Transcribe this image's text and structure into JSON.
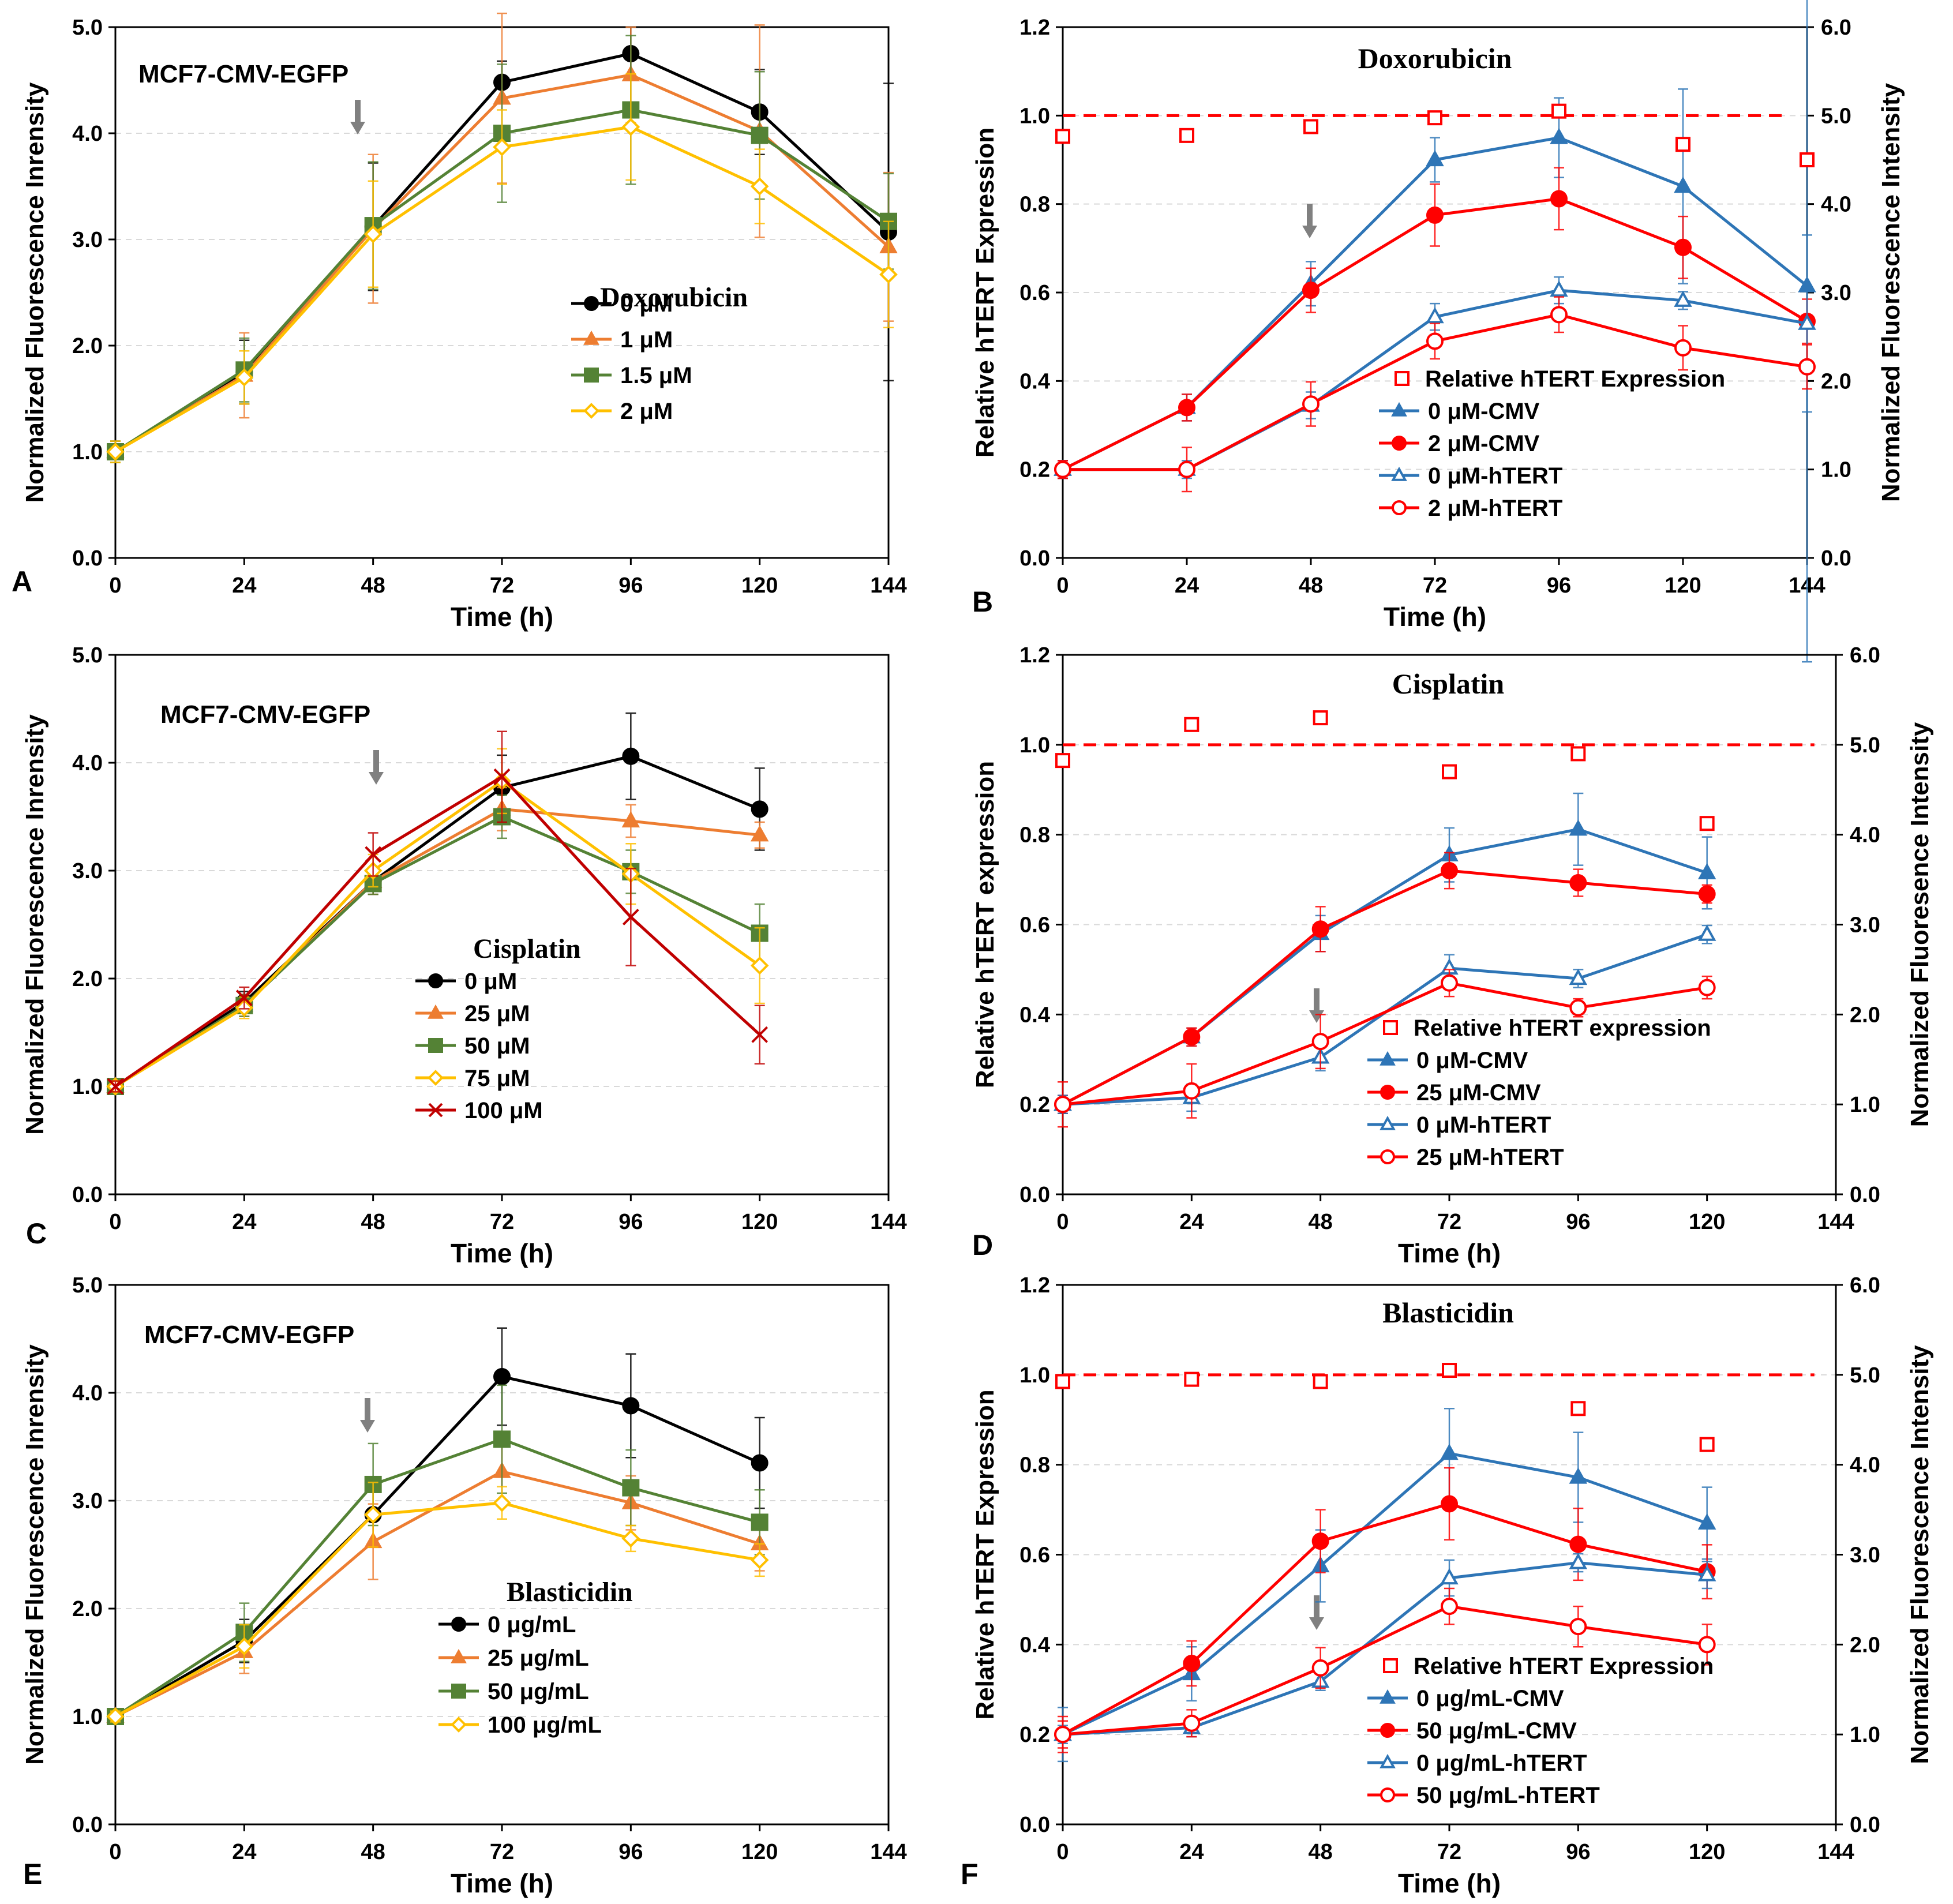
{
  "chart_data": [
    {
      "panel": "A",
      "type": "line",
      "annotation": "MCF7-CMV-EGFP",
      "xlabel": "Time (h)",
      "ylabel": "Normalized Fluorescence Inrensity",
      "xlim": [
        0,
        144
      ],
      "ylim": [
        0,
        5
      ],
      "xticks": [
        "0",
        "24",
        "48",
        "72",
        "96",
        "120",
        "144"
      ],
      "yticks": [
        "0.0",
        "1.0",
        "2.0",
        "3.0",
        "4.0",
        "5.0"
      ],
      "arrow_at": 48,
      "legend_title": "Doxorubicin",
      "x": [
        0,
        24,
        48,
        72,
        96,
        120,
        144
      ],
      "series": [
        {
          "name": "0 μM",
          "color": "#000000",
          "marker": "circle",
          "values": [
            1.0,
            1.75,
            3.12,
            4.48,
            4.75,
            4.2,
            3.07
          ],
          "errors": [
            0.1,
            0.3,
            0.6,
            0.2,
            0.25,
            0.4,
            1.4
          ]
        },
        {
          "name": "1 μM",
          "color": "#ED7D31",
          "marker": "triangle",
          "values": [
            1.0,
            1.72,
            3.1,
            4.33,
            4.55,
            4.02,
            2.93
          ],
          "errors": [
            0.1,
            0.4,
            0.7,
            0.8,
            0.45,
            1.0,
            0.7
          ]
        },
        {
          "name": "1.5 μM",
          "color": "#548235",
          "marker": "square",
          "values": [
            1.0,
            1.77,
            3.13,
            4.0,
            4.22,
            3.98,
            3.17
          ],
          "errors": [
            0.1,
            0.3,
            0.6,
            0.65,
            0.7,
            0.6,
            0.45
          ]
        },
        {
          "name": "2 μM",
          "color": "#FFC000",
          "marker": "diamond-open",
          "values": [
            1.0,
            1.7,
            3.05,
            3.87,
            4.06,
            3.5,
            2.67
          ],
          "errors": [
            0.1,
            0.25,
            0.5,
            0.35,
            0.5,
            0.35,
            0.5
          ]
        }
      ]
    },
    {
      "panel": "B",
      "type": "line",
      "title": "Doxorubicin",
      "xlabel": "Time (h)",
      "ylabel": "Relative hTERT Expression",
      "y2label": "Normalized Fluorescence Intensity",
      "xlim": [
        0,
        144
      ],
      "ylim": [
        0,
        1.2
      ],
      "y2lim": [
        0,
        6
      ],
      "xticks": [
        "0",
        "24",
        "48",
        "72",
        "96",
        "120",
        "144"
      ],
      "yticks": [
        "0.0",
        "0.2",
        "0.4",
        "0.6",
        "0.8",
        "1.0",
        "1.2"
      ],
      "y2ticks": [
        "0.0",
        "1.0",
        "2.0",
        "3.0",
        "4.0",
        "5.0",
        "6.0"
      ],
      "arrow_at": 48,
      "reference_line": 1.0,
      "x": [
        0,
        24,
        48,
        72,
        96,
        120,
        144
      ],
      "relative_expression": {
        "name": "Relative hTERT Expression",
        "color": "#FF0000",
        "values": [
          0.953,
          0.955,
          0.975,
          0.995,
          1.01,
          0.935,
          0.9
        ]
      },
      "series": [
        {
          "name": "0 μM-CMV",
          "color": "#2E75B6",
          "marker": "triangle",
          "values": [
            0.2,
            0.34,
            0.62,
            0.9,
            0.95,
            0.84,
            0.615
          ],
          "errors": [
            0.02,
            0.03,
            0.05,
            0.05,
            0.09,
            0.22,
            0.85
          ]
        },
        {
          "name": "2 μM-CMV",
          "color": "#FF0000",
          "marker": "circle",
          "values": [
            0.2,
            0.34,
            0.605,
            0.775,
            0.812,
            0.702,
            0.535
          ],
          "errors": [
            0.02,
            0.03,
            0.05,
            0.07,
            0.07,
            0.07,
            0.05
          ]
        },
        {
          "name": "0 μM-hTERT",
          "color": "#2E75B6",
          "marker": "triangle-open",
          "values": [
            0.2,
            0.2,
            0.345,
            0.545,
            0.605,
            0.582,
            0.53
          ],
          "errors": [
            0.02,
            0.02,
            0.03,
            0.03,
            0.03,
            0.02,
            0.2
          ]
        },
        {
          "name": "2 μM-hTERT",
          "color": "#FF0000",
          "marker": "circle-open",
          "values": [
            0.2,
            0.2,
            0.348,
            0.49,
            0.55,
            0.475,
            0.432
          ],
          "errors": [
            0.02,
            0.05,
            0.05,
            0.04,
            0.04,
            0.05,
            0.05
          ]
        }
      ]
    },
    {
      "panel": "C",
      "type": "line",
      "annotation": "MCF7-CMV-EGFP",
      "xlabel": "Time (h)",
      "ylabel": "Normalized Fluorescence Inrensity",
      "xlim": [
        0,
        144
      ],
      "ylim": [
        0,
        5
      ],
      "xticks": [
        "0",
        "24",
        "48",
        "72",
        "96",
        "120",
        "144"
      ],
      "yticks": [
        "0.0",
        "1.0",
        "2.0",
        "3.0",
        "4.0",
        "5.0"
      ],
      "arrow_at": 48,
      "legend_title": "Cisplatin",
      "x": [
        0,
        24,
        48,
        72,
        96,
        120
      ],
      "series": [
        {
          "name": "0 μM",
          "color": "#000000",
          "marker": "circle",
          "values": [
            1.0,
            1.78,
            2.9,
            3.77,
            4.06,
            3.57
          ],
          "errors": [
            0.05,
            0.1,
            0.12,
            0.3,
            0.4,
            0.38
          ]
        },
        {
          "name": "25 μM",
          "color": "#ED7D31",
          "marker": "triangle",
          "values": [
            1.0,
            1.75,
            2.9,
            3.57,
            3.46,
            3.33
          ],
          "errors": [
            0.05,
            0.1,
            0.12,
            0.2,
            0.15,
            0.12
          ]
        },
        {
          "name": "50 μM",
          "color": "#548235",
          "marker": "square",
          "values": [
            1.0,
            1.75,
            2.88,
            3.5,
            2.99,
            2.42
          ],
          "errors": [
            0.05,
            0.1,
            0.1,
            0.2,
            0.2,
            0.27
          ]
        },
        {
          "name": "75 μM",
          "color": "#FFC000",
          "marker": "diamond-open",
          "values": [
            1.0,
            1.73,
            3.0,
            3.83,
            2.97,
            2.12
          ],
          "errors": [
            0.05,
            0.1,
            0.15,
            0.3,
            0.28,
            0.35
          ]
        },
        {
          "name": "100 μM",
          "color": "#C00000",
          "marker": "x",
          "values": [
            1.0,
            1.82,
            3.15,
            3.87,
            2.57,
            1.48
          ],
          "errors": [
            0.05,
            0.1,
            0.2,
            0.42,
            0.45,
            0.27
          ]
        }
      ]
    },
    {
      "panel": "D",
      "type": "line",
      "title": "Cisplatin",
      "xlabel": "Time (h)",
      "ylabel": "Relative hTERT expression",
      "y2label": "Normalized Fluoresence Intensity",
      "xlim": [
        0,
        144
      ],
      "ylim": [
        0,
        1.2
      ],
      "y2lim": [
        0,
        6
      ],
      "xticks": [
        "0",
        "24",
        "48",
        "72",
        "96",
        "120",
        "144"
      ],
      "yticks": [
        "0.0",
        "0.2",
        "0.4",
        "0.6",
        "0.8",
        "1.0",
        "1.2"
      ],
      "y2ticks": [
        "0.0",
        "1.0",
        "2.0",
        "3.0",
        "4.0",
        "5.0",
        "6.0"
      ],
      "arrow_at": 48,
      "reference_line": 1.0,
      "x": [
        0,
        24,
        48,
        72,
        96,
        120
      ],
      "relative_expression": {
        "name": "Relative hTERT expression",
        "color": "#FF0000",
        "values": [
          0.965,
          1.045,
          1.06,
          0.94,
          0.98,
          0.825
        ]
      },
      "series": [
        {
          "name": "0 μM-CMV",
          "color": "#2E75B6",
          "marker": "triangle",
          "values": [
            0.2,
            0.35,
            0.58,
            0.755,
            0.812,
            0.715
          ],
          "errors": [
            0.02,
            0.02,
            0.04,
            0.06,
            0.08,
            0.08
          ]
        },
        {
          "name": "25 μM-CMV",
          "color": "#FF0000",
          "marker": "circle",
          "values": [
            0.2,
            0.35,
            0.59,
            0.72,
            0.693,
            0.668
          ],
          "errors": [
            0.02,
            0.02,
            0.05,
            0.04,
            0.03,
            0.02
          ]
        },
        {
          "name": "0 μM-hTERT",
          "color": "#2E75B6",
          "marker": "triangle-open",
          "values": [
            0.2,
            0.215,
            0.305,
            0.503,
            0.48,
            0.578
          ],
          "errors": [
            0.02,
            0.03,
            0.03,
            0.03,
            0.02,
            0.02
          ]
        },
        {
          "name": "25 μM-hTERT",
          "color": "#FF0000",
          "marker": "circle-open",
          "values": [
            0.2,
            0.23,
            0.34,
            0.47,
            0.415,
            0.46
          ],
          "errors": [
            0.05,
            0.06,
            0.06,
            0.03,
            0.02,
            0.025
          ]
        }
      ]
    },
    {
      "panel": "E",
      "type": "line",
      "annotation": "MCF7-CMV-EGFP",
      "xlabel": "Time (h)",
      "ylabel": "Normalized Fluorescence Inrensity",
      "xlim": [
        0,
        144
      ],
      "ylim": [
        0,
        5
      ],
      "xticks": [
        "0",
        "24",
        "48",
        "72",
        "96",
        "120",
        "144"
      ],
      "yticks": [
        "0.0",
        "1.0",
        "2.0",
        "3.0",
        "4.0",
        "5.0"
      ],
      "arrow_at": 48,
      "legend_title": "Blasticidin",
      "x": [
        0,
        24,
        48,
        72,
        96,
        120
      ],
      "series": [
        {
          "name": "0 μg/mL",
          "color": "#000000",
          "marker": "circle",
          "values": [
            1.0,
            1.7,
            2.87,
            4.15,
            3.88,
            3.35
          ],
          "errors": [
            0.05,
            0.2,
            0.3,
            0.45,
            0.48,
            0.42
          ]
        },
        {
          "name": "25 μg/mL",
          "color": "#ED7D31",
          "marker": "triangle",
          "values": [
            1.0,
            1.6,
            2.62,
            3.27,
            2.98,
            2.6
          ],
          "errors": [
            0.05,
            0.2,
            0.35,
            0.3,
            0.25,
            0.25
          ]
        },
        {
          "name": "50 μg/mL",
          "color": "#548235",
          "marker": "square",
          "values": [
            1.0,
            1.78,
            3.15,
            3.57,
            3.12,
            2.8
          ],
          "errors": [
            0.05,
            0.27,
            0.38,
            0.5,
            0.35,
            0.3
          ]
        },
        {
          "name": "100 μg/mL",
          "color": "#FFC000",
          "marker": "diamond-open",
          "values": [
            1.0,
            1.65,
            2.87,
            2.98,
            2.65,
            2.45
          ],
          "errors": [
            0.05,
            0.2,
            0.3,
            0.15,
            0.12,
            0.15
          ]
        }
      ]
    },
    {
      "panel": "F",
      "type": "line",
      "title": "Blasticidin",
      "xlabel": "Time (h)",
      "ylabel": "Relative hTERT Expression",
      "y2label": "Normalized Fluorescence Intensity",
      "xlim": [
        0,
        144
      ],
      "ylim": [
        0,
        1.2
      ],
      "y2lim": [
        0,
        6
      ],
      "xticks": [
        "0",
        "24",
        "48",
        "72",
        "96",
        "120",
        "144"
      ],
      "yticks": [
        "0.0",
        "0.2",
        "0.4",
        "0.6",
        "0.8",
        "1.0",
        "1.2"
      ],
      "y2ticks": [
        "0.0",
        "1.0",
        "2.0",
        "3.0",
        "4.0",
        "5.0",
        "6.0"
      ],
      "arrow_at": 48,
      "reference_line": 1.0,
      "x": [
        0,
        24,
        48,
        72,
        96,
        120
      ],
      "relative_expression": {
        "name": "Relative hTERT Expression",
        "color": "#FF0000",
        "values": [
          0.985,
          0.99,
          0.985,
          1.01,
          0.925,
          0.845
        ]
      },
      "series": [
        {
          "name": "0 μg/mL-CMV",
          "color": "#2E75B6",
          "marker": "triangle",
          "values": [
            0.2,
            0.335,
            0.575,
            0.825,
            0.772,
            0.67
          ],
          "errors": [
            0.06,
            0.06,
            0.08,
            0.1,
            0.1,
            0.08
          ]
        },
        {
          "name": "50 μg/mL-CMV",
          "color": "#FF0000",
          "marker": "circle",
          "values": [
            0.2,
            0.358,
            0.63,
            0.713,
            0.623,
            0.562
          ],
          "errors": [
            0.04,
            0.05,
            0.07,
            0.08,
            0.08,
            0.06
          ]
        },
        {
          "name": "0 μg/mL-hTERT",
          "color": "#2E75B6",
          "marker": "triangle-open",
          "values": [
            0.2,
            0.215,
            0.318,
            0.548,
            0.582,
            0.555
          ],
          "errors": [
            0.02,
            0.02,
            0.02,
            0.04,
            0.02,
            0.03
          ]
        },
        {
          "name": "50 μg/mL-hTERT",
          "color": "#FF0000",
          "marker": "circle-open",
          "values": [
            0.2,
            0.225,
            0.348,
            0.485,
            0.44,
            0.4
          ],
          "errors": [
            0.03,
            0.03,
            0.045,
            0.04,
            0.045,
            0.045
          ]
        }
      ]
    }
  ]
}
